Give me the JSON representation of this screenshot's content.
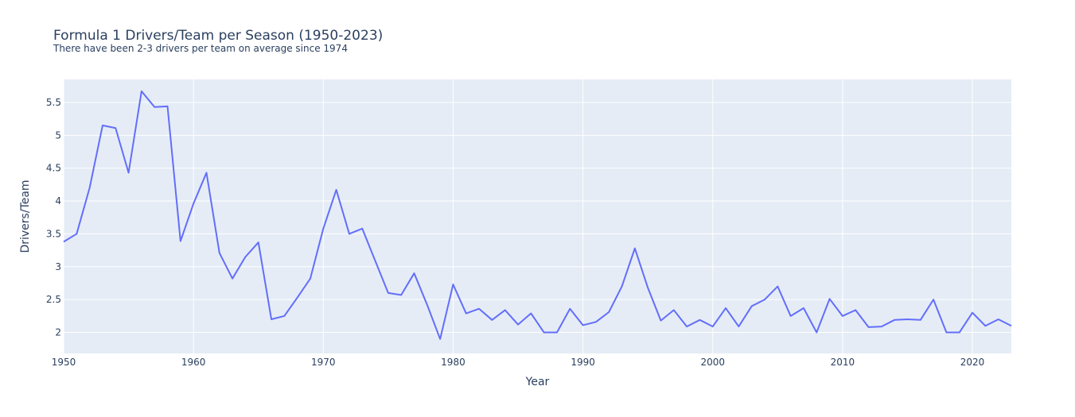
{
  "chart_data": {
    "type": "line",
    "title": "Formula 1 Drivers/Team per Season (1950-2023)",
    "subtitle": "There have been 2-3 drivers per team on average since 1974",
    "xlabel": "Year",
    "ylabel": "Drivers/Team",
    "xlim": [
      1950,
      2023
    ],
    "ylim": [
      1.68,
      5.85
    ],
    "x_ticks": [
      1950,
      1960,
      1970,
      1980,
      1990,
      2000,
      2010,
      2020
    ],
    "y_ticks": [
      2,
      2.5,
      3,
      3.5,
      4,
      4.5,
      5,
      5.5
    ],
    "grid": true,
    "colors": {
      "line": "#636efa",
      "plot_bg": "#e5ecf6",
      "grid": "#ffffff",
      "text": "#2a3f5f"
    },
    "series": [
      {
        "name": "Drivers/Team",
        "x": [
          1950,
          1951,
          1952,
          1953,
          1954,
          1955,
          1956,
          1957,
          1958,
          1959,
          1960,
          1961,
          1962,
          1963,
          1964,
          1965,
          1966,
          1967,
          1968,
          1969,
          1970,
          1971,
          1972,
          1973,
          1974,
          1975,
          1976,
          1977,
          1978,
          1979,
          1980,
          1981,
          1982,
          1983,
          1984,
          1985,
          1986,
          1987,
          1988,
          1989,
          1990,
          1991,
          1992,
          1993,
          1994,
          1995,
          1996,
          1997,
          1998,
          1999,
          2000,
          2001,
          2002,
          2003,
          2004,
          2005,
          2006,
          2007,
          2008,
          2009,
          2010,
          2011,
          2012,
          2013,
          2014,
          2015,
          2016,
          2017,
          2018,
          2019,
          2020,
          2021,
          2022,
          2023
        ],
        "values": [
          3.38,
          3.5,
          4.2,
          5.15,
          5.11,
          4.43,
          5.67,
          5.43,
          5.44,
          3.39,
          3.96,
          4.43,
          3.21,
          2.82,
          3.15,
          3.37,
          2.2,
          2.25,
          2.53,
          2.82,
          3.58,
          4.17,
          3.5,
          3.58,
          3.09,
          2.6,
          2.57,
          2.9,
          2.42,
          1.9,
          2.73,
          2.29,
          2.36,
          2.19,
          2.34,
          2.12,
          2.29,
          2.0,
          2.0,
          2.36,
          2.11,
          2.16,
          2.31,
          2.7,
          3.28,
          2.68,
          2.18,
          2.34,
          2.09,
          2.19,
          2.09,
          2.37,
          2.09,
          2.4,
          2.5,
          2.7,
          2.25,
          2.37,
          2.0,
          2.51,
          2.25,
          2.34,
          2.08,
          2.09,
          2.19,
          2.2,
          2.19,
          2.5,
          2.0,
          2.0,
          2.3,
          2.1,
          2.2,
          2.1
        ]
      }
    ]
  }
}
